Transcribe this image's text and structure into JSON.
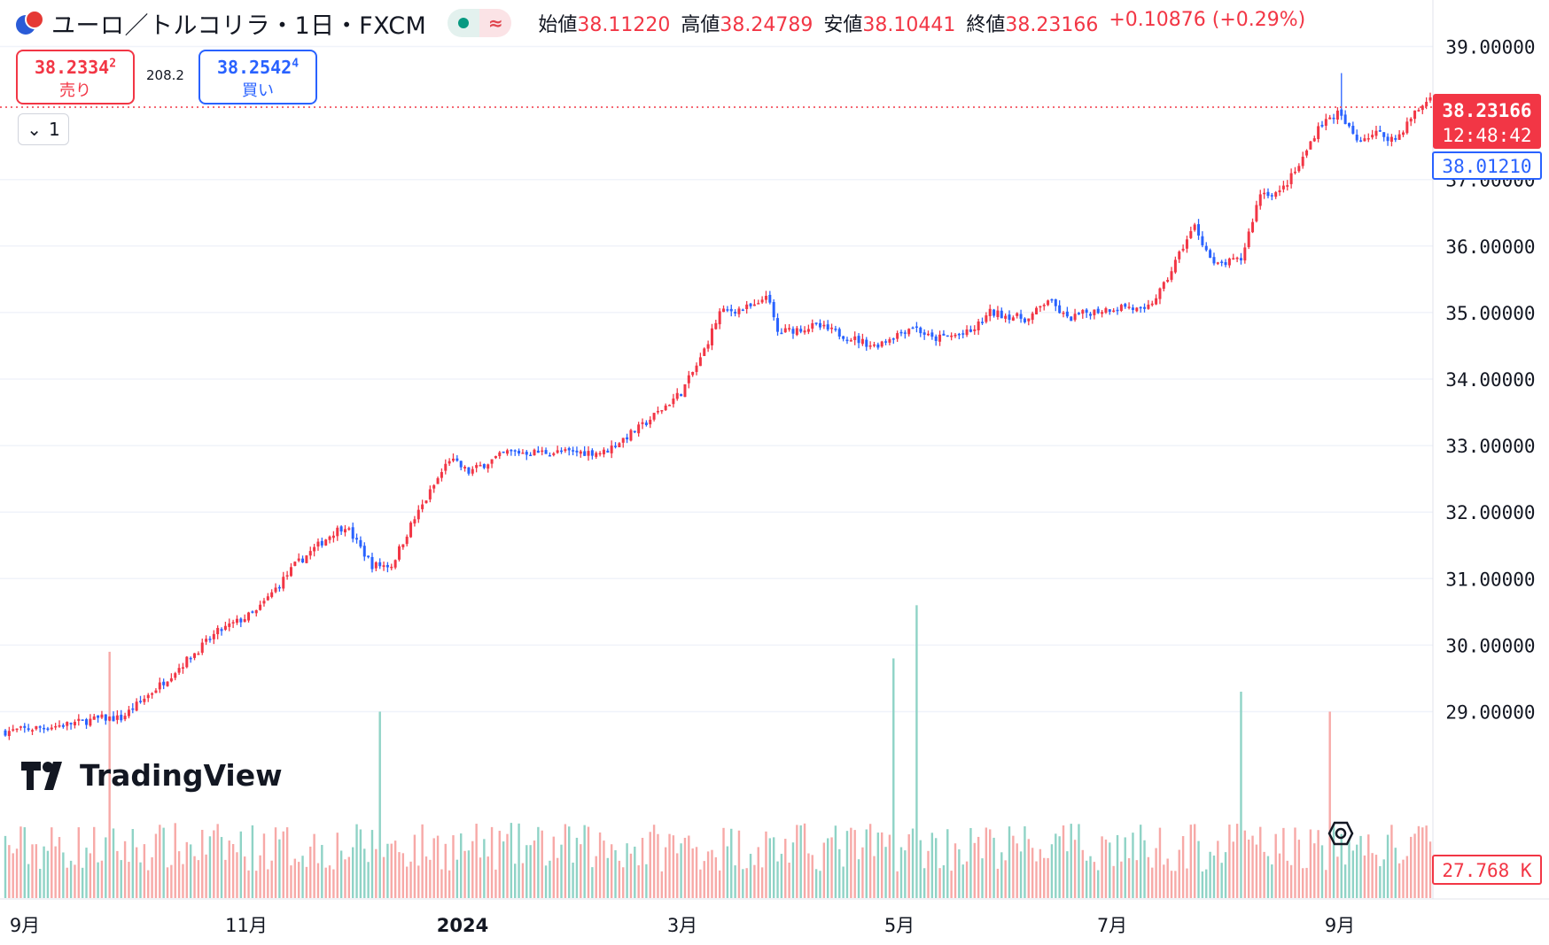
{
  "header": {
    "symbol": "ユーロ／トルコリラ・1日・FXCM",
    "ohlc": [
      {
        "label": "始値",
        "value": "38.11220"
      },
      {
        "label": "高値",
        "value": "38.24789"
      },
      {
        "label": "安値",
        "value": "38.10441"
      },
      {
        "label": "終値",
        "value": "38.23166"
      }
    ],
    "change": "+0.10876 (+0.29%)",
    "status_icon": "market-open-dot-icon",
    "delay_icon": "approx-icon",
    "delay_symbol": "≈"
  },
  "trade": {
    "sell_price": "38.2334",
    "sell_sup": "2",
    "sell_label": "売り",
    "spread": "208.2",
    "buy_price": "38.2542",
    "buy_sup": "4",
    "buy_label": "買い"
  },
  "collapse": {
    "icon": "chevron-down-icon",
    "count": "1"
  },
  "logo": {
    "wordmark": "TradingView",
    "icon": "tradingview-logo-icon"
  },
  "colors": {
    "up": "#f23645",
    "down": "#2962ff",
    "vol_up": "#f7a9a7",
    "vol_down": "#8fd3c6",
    "grid": "#f0f3fa"
  },
  "chart_data": {
    "type": "candlestick",
    "y_ticks": [
      "39.00000",
      "37.00000",
      "36.00000",
      "35.00000",
      "34.00000",
      "33.00000",
      "32.00000",
      "31.00000",
      "30.00000",
      "29.00000"
    ],
    "ylim": [
      28.2,
      39.6
    ],
    "x_ticks": [
      "9月",
      "11月",
      "2024",
      "3月",
      "5月",
      "7月",
      "9月"
    ],
    "current_price_label": "38.23166",
    "countdown": "12:48:42",
    "secondary_price_label": "38.01210",
    "volume_label": "27.768 K",
    "trend_anchors": [
      [
        0,
        28.7
      ],
      [
        15,
        28.8
      ],
      [
        25,
        28.9
      ],
      [
        30,
        28.9
      ],
      [
        40,
        29.4
      ],
      [
        55,
        30.2
      ],
      [
        65,
        30.5
      ],
      [
        75,
        31.2
      ],
      [
        85,
        31.7
      ],
      [
        88,
        31.8
      ],
      [
        95,
        31.2
      ],
      [
        100,
        31.2
      ],
      [
        105,
        31.8
      ],
      [
        115,
        32.8
      ],
      [
        120,
        32.6
      ],
      [
        130,
        32.9
      ],
      [
        150,
        32.9
      ],
      [
        155,
        32.9
      ],
      [
        165,
        33.3
      ],
      [
        175,
        33.8
      ],
      [
        180,
        34.3
      ],
      [
        185,
        35.0
      ],
      [
        195,
        35.1
      ],
      [
        197,
        35.3
      ],
      [
        200,
        34.7
      ],
      [
        210,
        34.8
      ],
      [
        215,
        34.7
      ],
      [
        225,
        34.5
      ],
      [
        235,
        34.8
      ],
      [
        240,
        34.6
      ],
      [
        250,
        34.7
      ],
      [
        255,
        35.0
      ],
      [
        265,
        34.9
      ],
      [
        270,
        35.2
      ],
      [
        275,
        34.9
      ],
      [
        280,
        35.0
      ],
      [
        290,
        35.1
      ],
      [
        295,
        35.0
      ],
      [
        300,
        35.4
      ],
      [
        305,
        36.0
      ],
      [
        308,
        36.3
      ],
      [
        313,
        35.7
      ],
      [
        320,
        35.8
      ],
      [
        325,
        36.8
      ],
      [
        330,
        36.8
      ],
      [
        335,
        37.2
      ],
      [
        340,
        37.8
      ],
      [
        345,
        38.0
      ],
      [
        350,
        37.6
      ],
      [
        355,
        37.7
      ],
      [
        360,
        37.6
      ],
      [
        365,
        38.0
      ],
      [
        369,
        38.23
      ]
    ],
    "spike": {
      "index": 346,
      "high": 38.6
    },
    "volume_spikes": [
      [
        27,
        29.9
      ],
      [
        97,
        29.0
      ],
      [
        230,
        29.8
      ],
      [
        236,
        30.6
      ],
      [
        320,
        29.3
      ],
      [
        343,
        29.0
      ]
    ]
  }
}
